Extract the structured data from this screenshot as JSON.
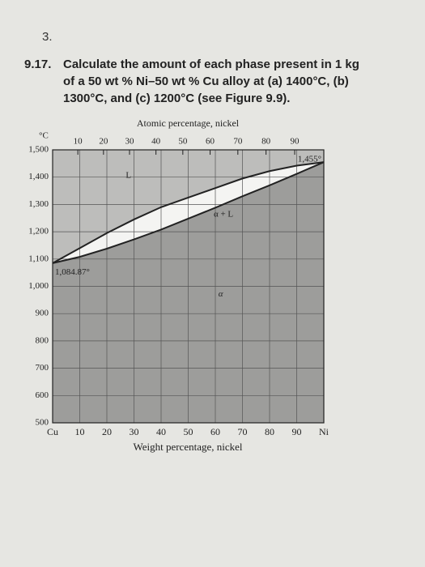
{
  "page_number": "3.",
  "problem": {
    "number": "9.17.",
    "lines": [
      "Calculate the amount of each phase present in 1 kg",
      "of a 50 wt % Ni–50 wt % Cu alloy at (a) 1400°C, (b)",
      "1300°C, and (c) 1200°C (see Figure 9.9)."
    ]
  },
  "chart_data": {
    "type": "line",
    "title": "Atomic percentage, nickel",
    "x_label": "Weight percentage, nickel",
    "y_label": "°C",
    "x": [
      0,
      10,
      20,
      30,
      40,
      50,
      60,
      70,
      80,
      90,
      100
    ],
    "series": [
      {
        "color": "#222222",
        "values": [
          1084.87,
          1140,
          1195,
          1245,
          1290,
          1325,
          1360,
          1395,
          1422,
          1442,
          1455
        ]
      },
      {
        "color": "#222222",
        "values": [
          1084.87,
          1108,
          1138,
          1172,
          1208,
          1248,
          1288,
          1330,
          1370,
          1412,
          1455
        ]
      }
    ],
    "xlim": [
      0,
      100
    ],
    "ylim": [
      500,
      1500
    ],
    "xticks": [
      {
        "value": 0,
        "label": "Cu"
      },
      10,
      20,
      30,
      40,
      50,
      60,
      70,
      80,
      90,
      {
        "value": 100,
        "label": "Ni"
      }
    ],
    "x2ticks": [
      10,
      20,
      30,
      40,
      50,
      60,
      70,
      80,
      90
    ],
    "yticks": [
      500,
      600,
      700,
      800,
      900,
      {
        "value": 1000,
        "label": "1,000"
      },
      {
        "value": 1100,
        "label": "1,100"
      },
      {
        "value": 1200,
        "label": "1,200"
      },
      {
        "value": 1300,
        "label": "1,300"
      },
      {
        "value": 1400,
        "label": "1,400"
      },
      {
        "value": 1500,
        "label": "1,500"
      }
    ],
    "grid": true,
    "annotations": {
      "liquid": "L",
      "two_phase": "α + L",
      "solid": "α",
      "cu_melt": "1,084.87°",
      "ni_melt": "1,455°"
    }
  }
}
